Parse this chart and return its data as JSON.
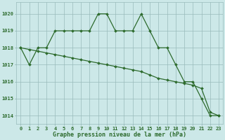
{
  "title": "Graphe pression niveau de la mer (hPa)",
  "x_labels": [
    "0",
    "1",
    "2",
    "3",
    "4",
    "5",
    "6",
    "7",
    "8",
    "9",
    "10",
    "11",
    "12",
    "13",
    "14",
    "15",
    "16",
    "17",
    "18",
    "19",
    "20",
    "21",
    "22",
    "23"
  ],
  "ylim": [
    1013.5,
    1020.7
  ],
  "yticks": [
    1014,
    1015,
    1016,
    1017,
    1018,
    1019,
    1020
  ],
  "line1": [
    1018,
    1017,
    1018,
    1018,
    1019,
    1019,
    1019,
    1019,
    1019,
    1020,
    1020,
    1019,
    1019,
    1019,
    1020,
    1019,
    1018,
    1018,
    1017,
    1016,
    1016,
    1015,
    1014,
    1014
  ],
  "line2": [
    1018,
    1017.9,
    1017.8,
    1017.7,
    1017.6,
    1017.5,
    1017.4,
    1017.3,
    1017.2,
    1017.1,
    1017.0,
    1016.9,
    1016.8,
    1016.7,
    1016.6,
    1016.4,
    1016.2,
    1016.1,
    1016.0,
    1015.9,
    1015.8,
    1015.6,
    1014.2,
    1014.0
  ],
  "line_color": "#2d6b2d",
  "bg_color": "#cce8e8",
  "grid_color": "#99bbbb",
  "label_color": "#2d6b2d",
  "marker": "D",
  "marker_size": 2.0,
  "line_width": 0.9,
  "tick_fontsize": 5.0,
  "xlabel_fontsize": 6.0
}
